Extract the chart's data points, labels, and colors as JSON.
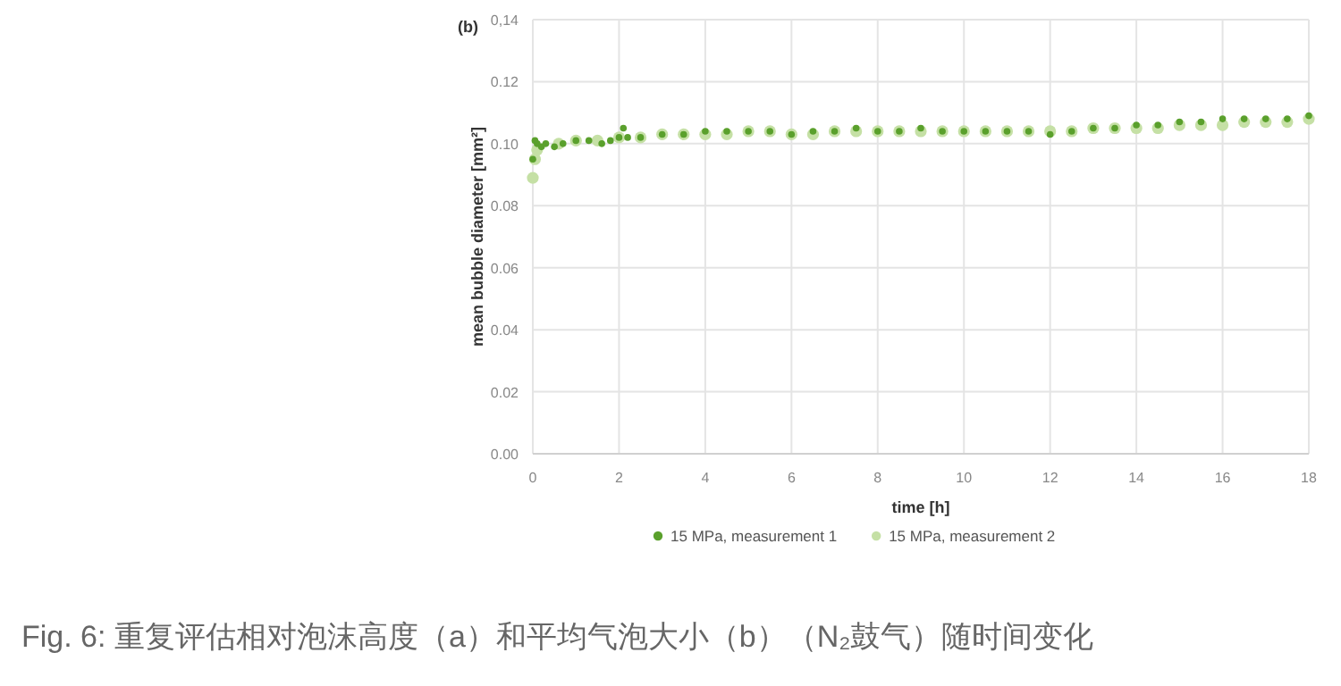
{
  "chart_data": {
    "type": "scatter",
    "xlabel": "time [h]",
    "ylabel": "mean bubble diameter [mm²]",
    "annotations": [
      "(b)",
      "Fig. 6: 重复评估相对泡沫高度（a）和平均气泡大小（b）（N₂鼓气）随时间变化"
    ],
    "xlim": [
      0,
      18
    ],
    "xticks": [
      0,
      2,
      4,
      6,
      8,
      10,
      12,
      14,
      16,
      18
    ],
    "ylim": [
      0,
      0.14
    ],
    "yticks": [
      {
        "value": 0,
        "label": "0.00"
      },
      {
        "value": 0.02,
        "label": "0.02"
      },
      {
        "value": 0.04,
        "label": "0.04"
      },
      {
        "value": 0.06,
        "label": "0.06"
      },
      {
        "value": 0.08,
        "label": "0.08"
      },
      {
        "value": 0.1,
        "label": "0.10"
      },
      {
        "value": 0.12,
        "label": "0.12"
      },
      {
        "value": 0.14,
        "label": "0,14"
      }
    ],
    "grid": true,
    "legend": "bottom",
    "marker": "circle",
    "series": [
      {
        "name": "15 MPa, measurement 1",
        "color": "#5aa02c",
        "x": [
          0,
          0.05,
          0.1,
          0.2,
          0.3,
          0.5,
          0.7,
          1.0,
          1.3,
          1.6,
          1.8,
          2.0,
          2.1,
          2.2,
          2.5,
          3,
          3.5,
          4,
          4.5,
          5,
          5.5,
          6,
          6.5,
          7,
          7.5,
          8,
          8.5,
          9,
          9.5,
          10,
          10.5,
          11,
          11.5,
          12,
          12.5,
          13,
          13.5,
          14,
          14.5,
          15,
          15.5,
          16,
          16.5,
          17,
          17.5,
          18
        ],
        "values": [
          0.095,
          0.101,
          0.1,
          0.099,
          0.1,
          0.099,
          0.1,
          0.101,
          0.101,
          0.1,
          0.101,
          0.102,
          0.105,
          0.102,
          0.102,
          0.103,
          0.103,
          0.104,
          0.104,
          0.104,
          0.104,
          0.103,
          0.104,
          0.104,
          0.105,
          0.104,
          0.104,
          0.105,
          0.104,
          0.104,
          0.104,
          0.104,
          0.104,
          0.103,
          0.104,
          0.105,
          0.105,
          0.106,
          0.106,
          0.107,
          0.107,
          0.108,
          0.108,
          0.108,
          0.108,
          0.109
        ]
      },
      {
        "name": "15 MPa, measurement 2",
        "color": "#c5e0a5",
        "x": [
          0,
          0.05,
          0.1,
          0.6,
          1,
          1.5,
          2,
          2.5,
          3,
          3.5,
          4,
          4.5,
          5,
          5.5,
          6,
          6.5,
          7,
          7.5,
          8,
          8.5,
          9,
          9.5,
          10,
          10.5,
          11,
          11.5,
          12,
          12.5,
          13,
          13.5,
          14,
          14.5,
          15,
          15.5,
          16,
          16.5,
          17,
          17.5,
          18
        ],
        "values": [
          0.089,
          0.095,
          0.098,
          0.1,
          0.101,
          0.101,
          0.102,
          0.102,
          0.103,
          0.103,
          0.103,
          0.103,
          0.104,
          0.104,
          0.103,
          0.103,
          0.104,
          0.104,
          0.104,
          0.104,
          0.104,
          0.104,
          0.104,
          0.104,
          0.104,
          0.104,
          0.104,
          0.104,
          0.105,
          0.105,
          0.105,
          0.105,
          0.106,
          0.106,
          0.106,
          0.107,
          0.107,
          0.107,
          0.108
        ]
      }
    ]
  }
}
